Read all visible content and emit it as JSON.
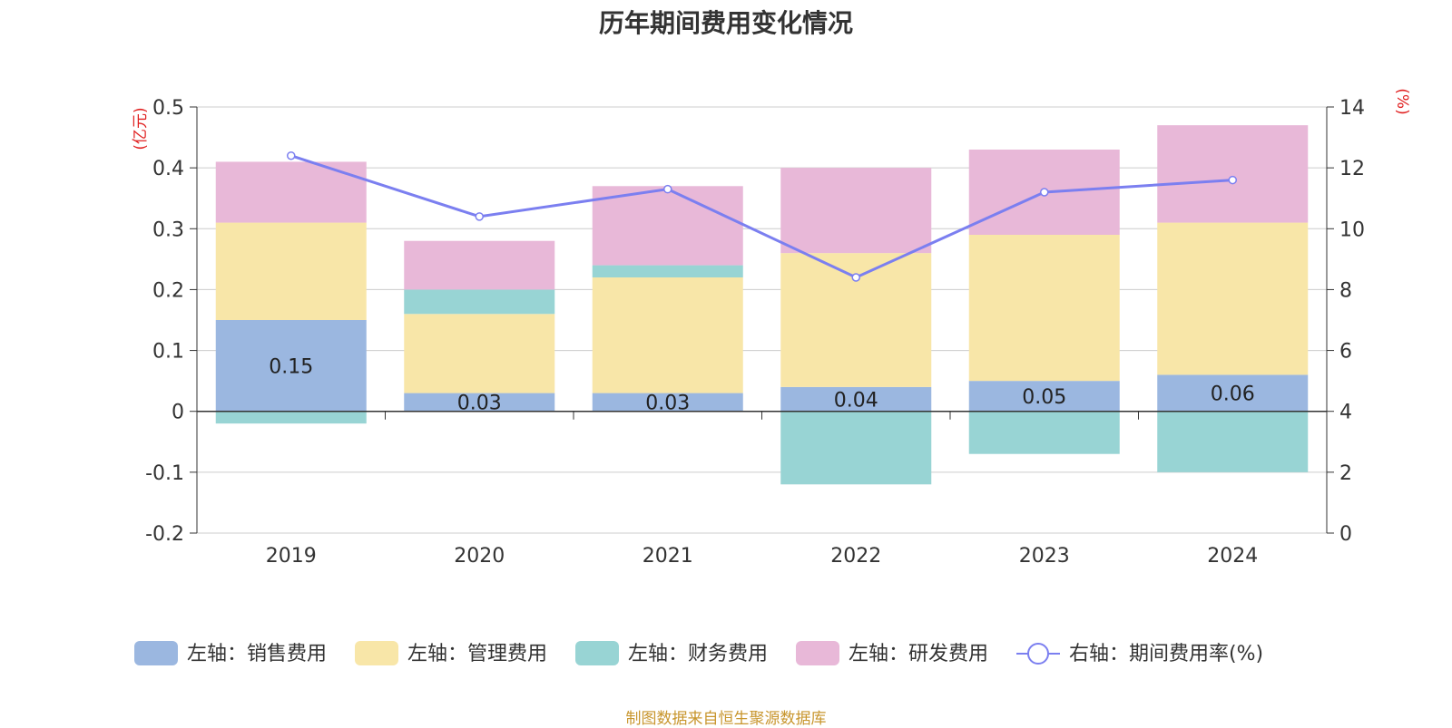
{
  "chart_data": {
    "type": "bar",
    "title": "历年期间费用变化情况",
    "categories": [
      "2019",
      "2020",
      "2021",
      "2022",
      "2023",
      "2024"
    ],
    "left_axis": {
      "unit": "(亿元)",
      "ylim": [
        -0.2,
        0.5
      ],
      "ticks": [
        "-0.2",
        "-0.1",
        "0",
        "0.1",
        "0.2",
        "0.3",
        "0.4",
        "0.5"
      ]
    },
    "right_axis": {
      "unit": "(%)",
      "ylim": [
        0,
        14
      ],
      "ticks": [
        "0",
        "2",
        "4",
        "6",
        "8",
        "10",
        "12",
        "14"
      ]
    },
    "series": [
      {
        "name": "左轴：销售费用",
        "kind": "bar",
        "color": "#9bb7e0",
        "values": [
          0.15,
          0.03,
          0.03,
          0.04,
          0.05,
          0.06
        ],
        "labels": [
          "0.15",
          "0.03",
          "0.03",
          "0.04",
          "0.05",
          "0.06"
        ]
      },
      {
        "name": "左轴：管理费用",
        "kind": "bar",
        "color": "#f8e6a8",
        "values": [
          0.16,
          0.13,
          0.19,
          0.22,
          0.24,
          0.25
        ]
      },
      {
        "name": "左轴：财务费用",
        "kind": "bar",
        "color": "#98d4d4",
        "values": [
          -0.02,
          0.04,
          0.02,
          -0.12,
          -0.07,
          -0.1
        ]
      },
      {
        "name": "左轴：研发费用",
        "kind": "bar",
        "color": "#e8b8d8",
        "values": [
          0.1,
          0.08,
          0.13,
          0.14,
          0.14,
          0.16
        ]
      },
      {
        "name": "右轴：期间费用率(%)",
        "kind": "line",
        "color": "#7b7ff0",
        "values": [
          12.4,
          10.4,
          11.3,
          8.4,
          11.2,
          11.6
        ]
      }
    ],
    "grid": true,
    "legend_position": "bottom"
  },
  "source_note": "制图数据来自恒生聚源数据库"
}
